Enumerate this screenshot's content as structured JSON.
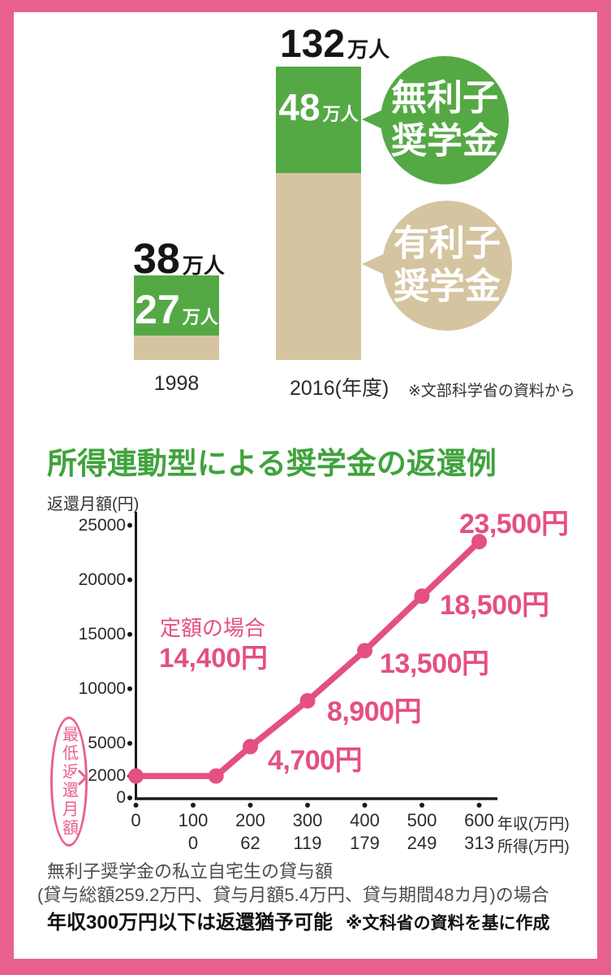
{
  "colors": {
    "frame": "#e8618c",
    "accent_pink": "#e4507f",
    "green": "#55a945",
    "beige": "#d5c4a0",
    "title_green": "#3fa33c"
  },
  "chart_data": [
    {
      "type": "bar",
      "stacked": true,
      "categories": [
        "1998",
        "2016(年度)"
      ],
      "totals": [
        38,
        132
      ],
      "unit": "万人",
      "series": [
        {
          "name": "無利子奨学金",
          "values": [
            27,
            48
          ],
          "color": "#55a945"
        },
        {
          "name": "有利子奨学金",
          "values": [
            11,
            84
          ],
          "color": "#d5c4a0"
        }
      ],
      "legend_bubbles": [
        {
          "line1": "無利子",
          "line2": "奨学金"
        },
        {
          "line1": "有利子",
          "line2": "奨学金"
        }
      ],
      "source": "※文部科学省の資料から"
    },
    {
      "type": "line",
      "title": "所得連動型による奨学金の返還例",
      "ylabel": "返還月額(円)",
      "x": [
        0,
        140,
        200,
        300,
        400,
        500,
        600
      ],
      "y": [
        2000,
        2000,
        4700,
        8900,
        13500,
        18500,
        23500
      ],
      "point_labels": [
        "",
        "",
        "4,700円",
        "8,900円",
        "13,500円",
        "18,500円",
        "23,500円"
      ],
      "yticks": [
        0,
        2000,
        5000,
        10000,
        15000,
        20000,
        25000
      ],
      "xticks": [
        0,
        100,
        200,
        300,
        400,
        500,
        600
      ],
      "xtick_unit": "年収(万円)",
      "income_row": [
        "0",
        "62",
        "119",
        "179",
        "249",
        "313"
      ],
      "income_unit": "所得(万円)",
      "xlim": [
        0,
        600
      ],
      "ylim": [
        0,
        25000
      ],
      "annotation": {
        "line1": "定額の場合",
        "line2": "14,400円"
      },
      "side_label": "最低返還月額",
      "line_color": "#e4507f"
    }
  ],
  "footer": {
    "line1": "無利子奨学金の私立自宅生の貸与額",
    "line2": "(貸与総額259.2万円、貸与月額5.4万円、貸与期間48カ月)の場合",
    "bold_note": "年収300万円以下は返還猶予可能",
    "source": "※文科省の資料を基に作成"
  }
}
